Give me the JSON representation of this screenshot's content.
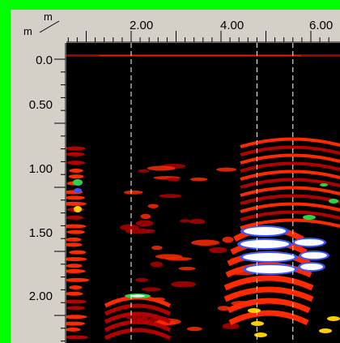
{
  "units": {
    "top": "m",
    "left": "m"
  },
  "x_axis": {
    "labels": [
      "2.00",
      "4.00",
      "6.00"
    ],
    "values": [
      2.0,
      4.0,
      6.0
    ]
  },
  "y_axis": {
    "labels": [
      "0.0",
      "0.50",
      "1.00",
      "1.50",
      "2.00"
    ],
    "values": [
      0.0,
      0.5,
      1.0,
      1.5,
      2.0
    ]
  },
  "markers_x": [
    2.0,
    4.8,
    5.6
  ],
  "colors": {
    "frame": "#00ff00",
    "panel": "#d4d0c8",
    "background": "#000000",
    "hot": "#ff2a00",
    "deep": "#b30000",
    "warm": "#ffcc00",
    "green": "#2cd34a",
    "cool": "#3b56ff",
    "white": "#ffffff"
  }
}
